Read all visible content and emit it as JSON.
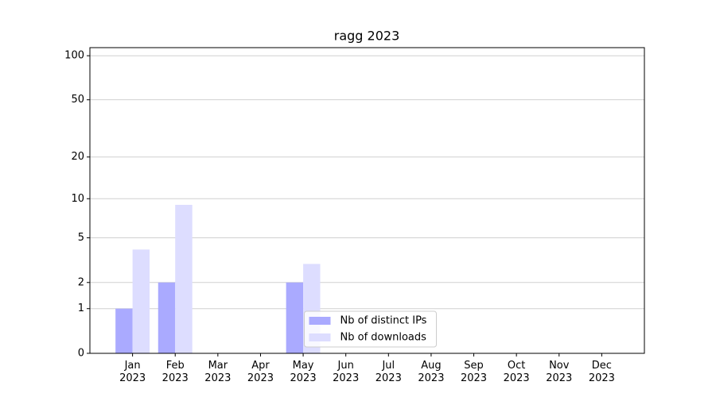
{
  "chart_data": {
    "type": "bar",
    "title": "ragg 2023",
    "categories": [
      "Jan\n2023",
      "Feb\n2023",
      "Mar\n2023",
      "Apr\n2023",
      "May\n2023",
      "Jun\n2023",
      "Jul\n2023",
      "Aug\n2023",
      "Sep\n2023",
      "Oct\n2023",
      "Nov\n2023",
      "Dec\n2023"
    ],
    "series": [
      {
        "name": "Nb of distinct IPs",
        "color": "#aaaaff",
        "values": [
          1,
          2,
          0,
          0,
          2,
          0,
          0,
          0,
          0,
          0,
          0,
          0
        ]
      },
      {
        "name": "Nb of downloads",
        "color": "#ddddff",
        "values": [
          4,
          9,
          0,
          0,
          3,
          0,
          0,
          0,
          0,
          0,
          0,
          0
        ]
      }
    ],
    "yscale": "log1p",
    "ylim": [
      0,
      113.5
    ],
    "yticks": [
      0,
      1,
      2,
      5,
      10,
      20,
      50,
      100
    ],
    "grid": true,
    "legend": "lower center"
  }
}
